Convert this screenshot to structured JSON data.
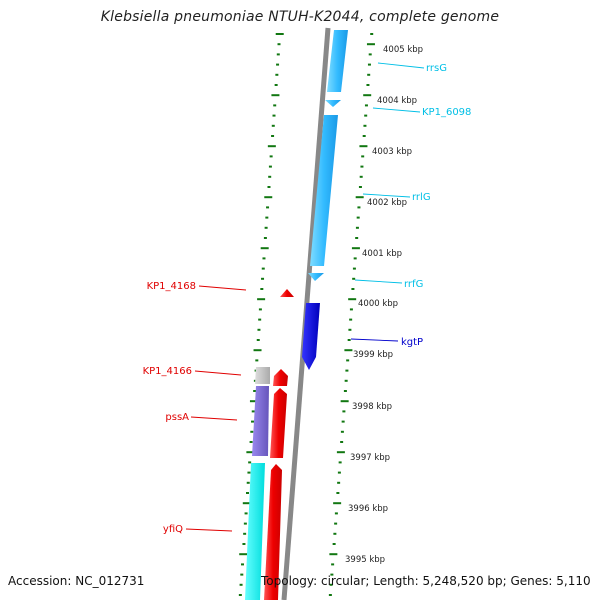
{
  "title": "Klebsiella pneumoniae NTUH-K2044, complete genome",
  "accession": "Accession: NC_012731",
  "topology": "Topology: circular; Length: 5,248,520 bp; Genes: 5,110",
  "ticks": [
    "4005 kbp",
    "4004 kbp",
    "4003 kbp",
    "4002 kbp",
    "4001 kbp",
    "4000 kbp",
    "3999 kbp",
    "3998 kbp",
    "3997 kbp",
    "3996 kbp",
    "3995 kbp"
  ],
  "genes_right": [
    {
      "name": "rrsG",
      "color": "#00bfe6"
    },
    {
      "name": "KP1_6098",
      "color": "#00bfe6"
    },
    {
      "name": "rrlG",
      "color": "#00bfe6"
    },
    {
      "name": "rrfG",
      "color": "#00bfe6"
    },
    {
      "name": "kgtP",
      "color": "#0000cc"
    }
  ],
  "genes_left": [
    {
      "name": "KP1_4168",
      "color": "#e00000"
    },
    {
      "name": "KP1_4166",
      "color": "#e00000"
    },
    {
      "name": "pssA",
      "color": "#e00000"
    },
    {
      "name": "yfiQ",
      "color": "#e00000"
    }
  ],
  "colors": {
    "rna_blue": "#33ccff",
    "cds_blue": "#1a1acc",
    "cds_red": "#ee1111",
    "purple": "#7766cc",
    "cyan": "#00eeee",
    "grey": "#bbbbbb",
    "backbone": "#888888",
    "tick_green": "#117711"
  }
}
